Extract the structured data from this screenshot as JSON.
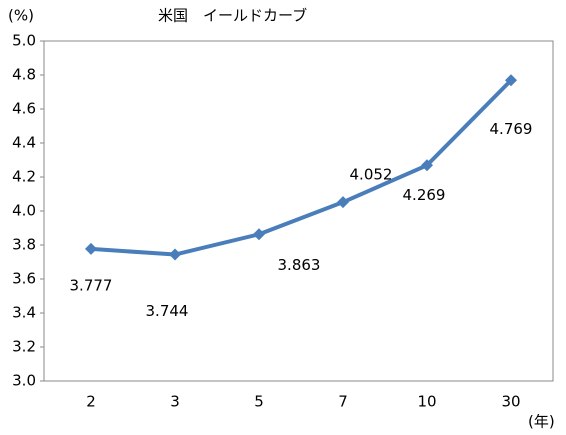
{
  "chart_data": {
    "type": "line",
    "title": "米国　イールドカーブ",
    "y_label": "(%)",
    "x_label": "(年)",
    "categories": [
      "2",
      "3",
      "5",
      "7",
      "10",
      "30"
    ],
    "series": [
      {
        "name": "米国",
        "color": "#4a7ebb",
        "values": [
          3.777,
          3.744,
          3.863,
          4.052,
          4.269,
          4.769
        ]
      }
    ],
    "ylim": [
      3.0,
      5.0
    ],
    "yticks": [
      {
        "value": 3,
        "label": "3.0"
      },
      {
        "value": 3.2,
        "label": "3.2"
      },
      {
        "value": 3.4,
        "label": "3.4"
      },
      {
        "value": 3.6,
        "label": "3.6"
      },
      {
        "value": 3.8,
        "label": "3.8"
      },
      {
        "value": 4,
        "label": "4.0"
      },
      {
        "value": 4.2,
        "label": "4.2"
      },
      {
        "value": 4.4,
        "label": "4.4"
      },
      {
        "value": 4.6,
        "label": "4.6"
      },
      {
        "value": 4.8,
        "label": "4.8"
      },
      {
        "value": 5,
        "label": "5.0"
      }
    ],
    "grid": false
  }
}
